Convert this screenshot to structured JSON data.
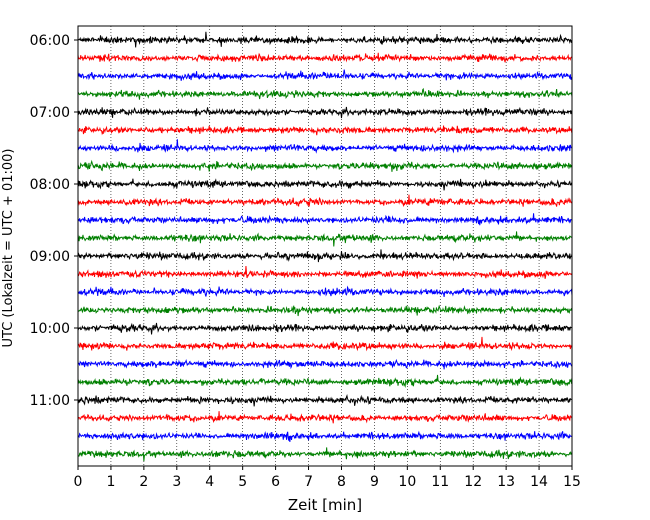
{
  "chart_data": {
    "type": "line",
    "title": "",
    "xlabel": "Zeit  [min]",
    "ylabel": "UTC (Lokalzeit = UTC + 01:00)",
    "xlim": [
      0,
      15
    ],
    "x_ticks": [
      "0",
      "1",
      "2",
      "3",
      "4",
      "5",
      "6",
      "7",
      "8",
      "9",
      "10",
      "11",
      "12",
      "13",
      "14",
      "15"
    ],
    "y_tick_labels": [
      "06:00",
      "07:00",
      "08:00",
      "09:00",
      "10:00",
      "11:00"
    ],
    "y_ticks": [
      0,
      4,
      8,
      12,
      16,
      20
    ],
    "trace_count": 24,
    "trace_interval_minutes": 15,
    "start_time_utc": "06:00",
    "color_cycle": [
      "#000000",
      "#ff0000",
      "#0000ff",
      "#008000"
    ],
    "grid": "vertical dotted at each minute",
    "legend": "none"
  }
}
